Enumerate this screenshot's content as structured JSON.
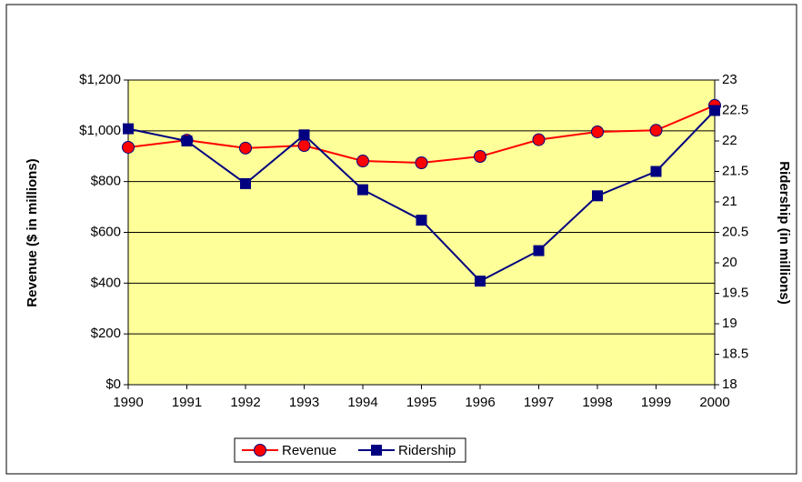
{
  "chart_data": {
    "type": "line",
    "categories": [
      "1990",
      "1991",
      "1992",
      "1993",
      "1994",
      "1995",
      "1996",
      "1997",
      "1998",
      "1999",
      "2000"
    ],
    "series": [
      {
        "name": "Revenue",
        "color": "#ff0000",
        "marker_color": "#ff0000",
        "marker": "circle",
        "values": [
          935,
          963,
          932,
          942,
          881,
          874,
          899,
          965,
          996,
          1002,
          1100
        ]
      },
      {
        "name": "Ridership",
        "color": "#000080",
        "marker_color": "#000080",
        "marker": "square",
        "axis": "y2",
        "values": [
          22.2,
          22.0,
          21.3,
          22.1,
          21.2,
          20.7,
          19.7,
          20.2,
          21.1,
          21.5,
          22.5
        ]
      }
    ],
    "ylabel": "Revenue ($ in millions)",
    "y2label": "Ridership (in millions)",
    "ylim": [
      0,
      1200
    ],
    "yticks": [
      {
        "value": 0,
        "label": "$0"
      },
      {
        "value": 200,
        "label": "$200"
      },
      {
        "value": 400,
        "label": "$400"
      },
      {
        "value": 600,
        "label": "$600"
      },
      {
        "value": 800,
        "label": "$800"
      },
      {
        "value": 1000,
        "label": "$1,000"
      },
      {
        "value": 1200,
        "label": "$1,200"
      }
    ],
    "y2lim": [
      18,
      23
    ],
    "y2ticks": [
      18,
      18.5,
      19,
      19.5,
      20,
      20.5,
      21,
      21.5,
      22,
      22.5,
      23
    ],
    "grid": true,
    "legend": "bottom",
    "plot_background": "#ffff99"
  }
}
